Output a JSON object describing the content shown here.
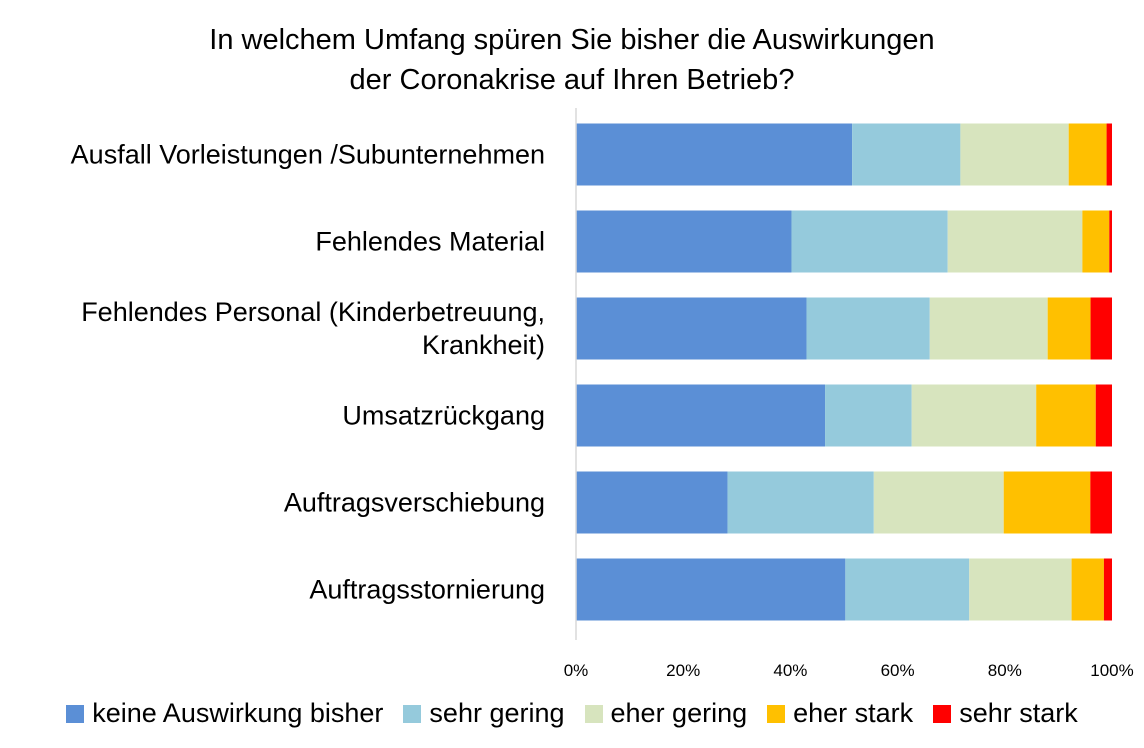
{
  "chart_data": {
    "type": "bar",
    "orientation": "horizontal",
    "stacked": "percent",
    "title": "In welchem Umfang spüren Sie bisher die Auswirkungen der Coronakrise auf Ihren Betrieb?",
    "title_lines": [
      "In welchem Umfang spüren Sie bisher die Auswirkungen",
      "der Coronakrise auf Ihren Betrieb?"
    ],
    "categories": [
      [
        "Ausfall Vorleistungen /Subunternehmen"
      ],
      [
        "Fehlendes Material"
      ],
      [
        "Fehlendes Personal (Kinderbetreuung,",
        "Krankheit)"
      ],
      [
        "Umsatzrückgang"
      ],
      [
        "Auftragsverschiebung"
      ],
      [
        "Auftragsstornierung"
      ]
    ],
    "series": [
      {
        "name": "keine Auswirkung bisher",
        "color": "#5B8FD6",
        "values": [
          51,
          40,
          43,
          46,
          28,
          50
        ]
      },
      {
        "name": "sehr gering",
        "color": "#95CADC",
        "values": [
          20,
          29,
          23,
          16,
          27,
          23
        ]
      },
      {
        "name": "eher gering",
        "color": "#D7E4BE",
        "values": [
          20,
          25,
          22,
          23,
          24,
          19
        ]
      },
      {
        "name": "eher stark",
        "color": "#FFC000",
        "values": [
          7,
          5,
          8,
          11,
          16,
          6
        ]
      },
      {
        "name": "sehr stark",
        "color": "#FF0000",
        "values": [
          1,
          0.5,
          4,
          3,
          4,
          1.5
        ]
      }
    ],
    "xticks": [
      "0%",
      "20%",
      "40%",
      "60%",
      "80%",
      "100%"
    ],
    "xlim": [
      0,
      100
    ],
    "xlabel": "",
    "ylabel": "",
    "grid": false,
    "legend_position": "bottom"
  }
}
